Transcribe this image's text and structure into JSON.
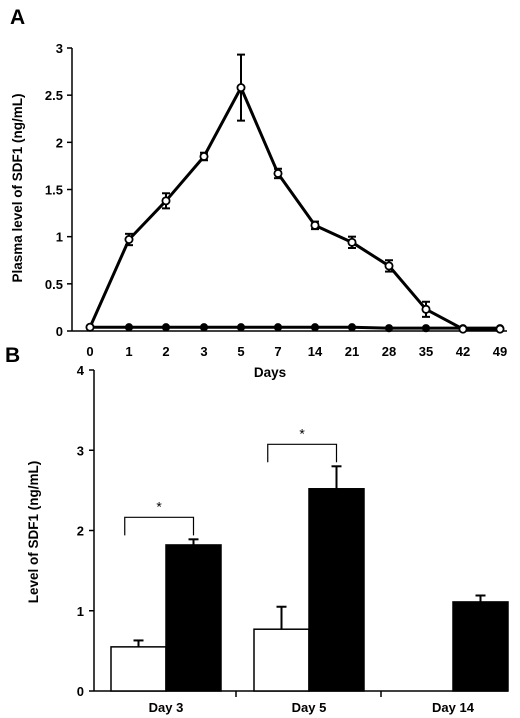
{
  "chart_data": [
    {
      "panel": "A",
      "type": "line",
      "title": "",
      "xlabel": "Days",
      "ylabel": "Plasma level of SDF1 (ng/mL)",
      "categories": [
        "0",
        "1",
        "2",
        "3",
        "5",
        "7",
        "14",
        "21",
        "28",
        "35",
        "42",
        "49"
      ],
      "ylim": [
        0,
        3
      ],
      "yticks": [
        "0",
        "0.5",
        "1",
        "1.5",
        "2",
        "2.5",
        "3"
      ],
      "ytick_values": [
        0,
        0.5,
        1,
        1.5,
        2,
        2.5,
        3
      ],
      "grid": false,
      "series": [
        {
          "marker": "open-circle",
          "values": [
            0.04,
            0.97,
            1.38,
            1.85,
            2.58,
            1.67,
            1.12,
            0.94,
            0.69,
            0.23,
            0.02,
            0.02
          ],
          "errors": [
            0.01,
            0.06,
            0.08,
            0.04,
            0.35,
            0.05,
            0.04,
            0.06,
            0.06,
            0.08,
            0.01,
            0.01
          ]
        },
        {
          "marker": "filled-circle",
          "values": [
            0.04,
            0.04,
            0.04,
            0.04,
            0.04,
            0.04,
            0.04,
            0.04,
            0.03,
            0.03,
            0.03,
            0.03
          ],
          "errors": [
            0,
            0,
            0,
            0,
            0,
            0,
            0,
            0,
            0,
            0,
            0,
            0
          ]
        }
      ]
    },
    {
      "panel": "B",
      "type": "bar",
      "title": "",
      "xlabel": "",
      "ylabel": "Level of SDF1 (ng/mL)",
      "categories": [
        "Day 3",
        "Day 5",
        "Day 14"
      ],
      "ylim": [
        0,
        4
      ],
      "yticks": [
        "0",
        "1",
        "2",
        "3",
        "4"
      ],
      "ytick_values": [
        0,
        1,
        2,
        3,
        4
      ],
      "grid": false,
      "series": [
        {
          "fill": "#ffffff",
          "values": [
            0.55,
            0.77,
            0
          ],
          "errors": [
            0.08,
            0.28,
            0
          ]
        },
        {
          "fill": "#000000",
          "values": [
            1.82,
            2.52,
            1.11
          ],
          "errors": [
            0.07,
            0.28,
            0.08
          ]
        }
      ],
      "significance": [
        {
          "category": "Day 3",
          "label": "*"
        },
        {
          "category": "Day 5",
          "label": "*"
        }
      ]
    }
  ]
}
